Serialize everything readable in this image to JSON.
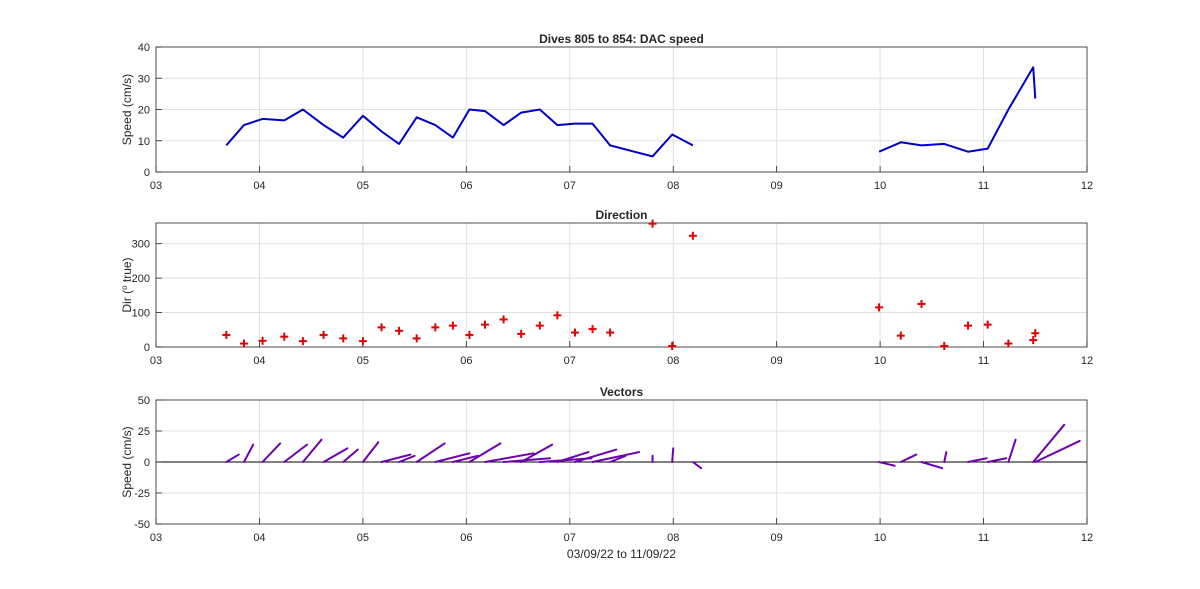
{
  "figure": {
    "colors": {
      "speed_line": "#0000c8",
      "direction_marker": "#e00000",
      "vectors": "#7000b0",
      "axes": "#262626",
      "grid": "#dfdfdf",
      "zero_line": "#000000"
    }
  },
  "chart_data": [
    {
      "type": "line",
      "title": "Dives 805 to 854: DAC speed",
      "xlabel": "",
      "ylabel": "Speed (cm/s)",
      "xlim": [
        3,
        12
      ],
      "ylim": [
        0,
        40
      ],
      "xticks": [
        3,
        4,
        5,
        6,
        7,
        8,
        9,
        10,
        11,
        12
      ],
      "xtick_labels": [
        "03",
        "04",
        "05",
        "06",
        "07",
        "08",
        "09",
        "10",
        "11",
        "12"
      ],
      "yticks": [
        0,
        10,
        20,
        30,
        40
      ],
      "ytick_labels": [
        "0",
        "10",
        "20",
        "30",
        "40"
      ],
      "grid": true,
      "series": [
        {
          "segments": [
            {
              "x": [
                3.68,
                3.85,
                4.03,
                4.24,
                4.42,
                4.62,
                4.81,
                5.0,
                5.18,
                5.35,
                5.52,
                5.7,
                5.87,
                6.03,
                6.18,
                6.36,
                6.53,
                6.71,
                6.88,
                7.05,
                7.22,
                7.39,
                7.8,
                7.99,
                8.19
              ],
              "y": [
                8.5,
                15,
                17,
                16.5,
                20,
                15,
                11,
                18,
                13,
                9,
                17.5,
                15,
                11,
                20,
                19.5,
                15,
                19,
                20,
                15,
                15.5,
                15.5,
                8.5,
                5,
                12,
                8.5
              ]
            },
            {
              "x": [
                9.99,
                10.2,
                10.4,
                10.62,
                10.85,
                11.04,
                11.24,
                11.48,
                11.5
              ],
              "y": [
                6.5,
                9.5,
                8.5,
                9,
                6.5,
                7.5,
                20,
                33.5,
                23.5
              ]
            }
          ]
        }
      ]
    },
    {
      "type": "scatter",
      "title": "Direction",
      "xlabel": "",
      "ylabel": "Dir (",
      "ylabel_super": "o",
      "ylabel_suffix": " true)",
      "xlim": [
        3,
        12
      ],
      "ylim": [
        0,
        360
      ],
      "xticks": [
        3,
        4,
        5,
        6,
        7,
        8,
        9,
        10,
        11,
        12
      ],
      "xtick_labels": [
        "03",
        "04",
        "05",
        "06",
        "07",
        "08",
        "09",
        "10",
        "11",
        "12"
      ],
      "yticks": [
        0,
        100,
        200,
        300
      ],
      "ytick_labels": [
        "0",
        "100",
        "200",
        "300"
      ],
      "grid": true,
      "marker": "+",
      "series": [
        {
          "x": [
            3.68,
            3.85,
            4.03,
            4.24,
            4.42,
            4.62,
            4.81,
            5.0,
            5.18,
            5.35,
            5.52,
            5.7,
            5.87,
            6.03,
            6.18,
            6.36,
            6.53,
            6.71,
            6.88,
            7.05,
            7.22,
            7.39,
            7.8,
            7.99,
            8.19,
            9.99,
            10.2,
            10.4,
            10.62,
            10.85,
            11.04,
            11.24,
            11.48,
            11.5
          ],
          "y": [
            35,
            10,
            18,
            30,
            17,
            35,
            25,
            17,
            57,
            47,
            25,
            57,
            62,
            35,
            65,
            80,
            38,
            62,
            92,
            42,
            52,
            42,
            358,
            3,
            323,
            115,
            33,
            125,
            3,
            62,
            65,
            10,
            20,
            40
          ]
        }
      ]
    },
    {
      "type": "line",
      "subtype": "vectors",
      "title": "Vectors",
      "xlabel": "03/09/22 to 11/09/22",
      "ylabel": "Speed (cm/s)",
      "xlim": [
        3,
        12
      ],
      "ylim": [
        -50,
        50
      ],
      "xticks": [
        3,
        4,
        5,
        6,
        7,
        8,
        9,
        10,
        11,
        12
      ],
      "xtick_labels": [
        "03",
        "04",
        "05",
        "06",
        "07",
        "08",
        "09",
        "10",
        "11",
        "12"
      ],
      "yticks": [
        -50,
        -25,
        0,
        25,
        50
      ],
      "ytick_labels": [
        "-50",
        "-25",
        "0",
        "25",
        "50"
      ],
      "grid": true,
      "vectors": [
        {
          "x": 3.68,
          "dx": 0.12,
          "dy": 6
        },
        {
          "x": 3.85,
          "dx": 0.09,
          "dy": 14
        },
        {
          "x": 4.03,
          "dx": 0.17,
          "dy": 15
        },
        {
          "x": 4.24,
          "dx": 0.22,
          "dy": 14
        },
        {
          "x": 4.42,
          "dx": 0.18,
          "dy": 18
        },
        {
          "x": 4.62,
          "dx": 0.23,
          "dy": 11
        },
        {
          "x": 4.81,
          "dx": 0.14,
          "dy": 10
        },
        {
          "x": 5.0,
          "dx": 0.15,
          "dy": 16
        },
        {
          "x": 5.18,
          "dx": 0.28,
          "dy": 6
        },
        {
          "x": 5.35,
          "dx": 0.15,
          "dy": 5
        },
        {
          "x": 5.52,
          "dx": 0.27,
          "dy": 15
        },
        {
          "x": 5.7,
          "dx": 0.33,
          "dy": 7
        },
        {
          "x": 5.87,
          "dx": 0.24,
          "dy": 5
        },
        {
          "x": 6.03,
          "dx": 0.3,
          "dy": 15
        },
        {
          "x": 6.18,
          "dx": 0.47,
          "dy": 7
        },
        {
          "x": 6.36,
          "dx": 0.45,
          "dy": 3
        },
        {
          "x": 6.53,
          "dx": 0.3,
          "dy": 14
        },
        {
          "x": 6.71,
          "dx": 0.5,
          "dy": 3
        },
        {
          "x": 6.88,
          "dx": 0.3,
          "dy": 8
        },
        {
          "x": 7.05,
          "dx": 0.4,
          "dy": 10
        },
        {
          "x": 7.22,
          "dx": 0.45,
          "dy": 8
        },
        {
          "x": 7.39,
          "dx": 0.15,
          "dy": 5
        },
        {
          "x": 7.8,
          "dx": 0.0,
          "dy": 5
        },
        {
          "x": 7.99,
          "dx": 0.01,
          "dy": 11
        },
        {
          "x": 8.19,
          "dx": 0.08,
          "dy": -5
        },
        {
          "x": 9.99,
          "dx": 0.15,
          "dy": -3
        },
        {
          "x": 10.2,
          "dx": 0.15,
          "dy": 6
        },
        {
          "x": 10.4,
          "dx": 0.2,
          "dy": -5
        },
        {
          "x": 10.62,
          "dx": 0.02,
          "dy": 8
        },
        {
          "x": 10.85,
          "dx": 0.18,
          "dy": 3
        },
        {
          "x": 11.04,
          "dx": 0.18,
          "dy": 3
        },
        {
          "x": 11.24,
          "dx": 0.07,
          "dy": 18
        },
        {
          "x": 11.48,
          "dx": 0.3,
          "dy": 30
        },
        {
          "x": 11.5,
          "dx": 0.43,
          "dy": 17
        }
      ]
    }
  ]
}
